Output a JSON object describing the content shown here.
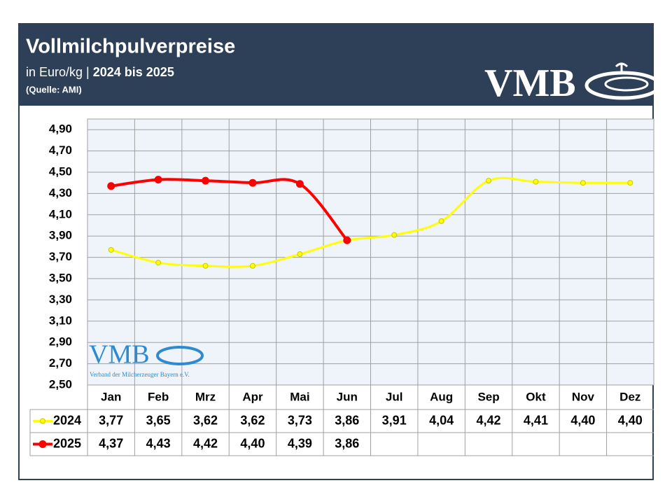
{
  "chart_data": {
    "type": "line",
    "title": "Vollmilchpulverpreise",
    "unit": "in Euro/kg |",
    "subtitle": "2024 bis 2025",
    "source": "(Quelle: AMI)",
    "logo": "VMB",
    "watermark": "VMB",
    "watermark_caption": "Verband der Milcherzeuger Bayern e.V.",
    "categories": [
      "Jan",
      "Feb",
      "Mrz",
      "Apr",
      "Mai",
      "Jun",
      "Jul",
      "Aug",
      "Sep",
      "Okt",
      "Nov",
      "Dez"
    ],
    "series": [
      {
        "name": "2024",
        "color": "#ffff00",
        "values": [
          3.77,
          3.65,
          3.62,
          3.62,
          3.73,
          3.86,
          3.91,
          4.04,
          4.42,
          4.41,
          4.4,
          4.4
        ],
        "value_labels": [
          "3,77",
          "3,65",
          "3,62",
          "3,62",
          "3,73",
          "3,86",
          "3,91",
          "4,04",
          "4,42",
          "4,41",
          "4,40",
          "4,40"
        ]
      },
      {
        "name": "2025",
        "color": "#ff0000",
        "values": [
          4.37,
          4.43,
          4.42,
          4.4,
          4.39,
          3.86,
          null,
          null,
          null,
          null,
          null,
          null
        ],
        "value_labels": [
          "4,37",
          "4,43",
          "4,42",
          "4,40",
          "4,39",
          "3,86",
          null,
          null,
          null,
          null,
          null,
          null
        ]
      }
    ],
    "ylim": [
      2.5,
      5.0
    ],
    "yticks": [
      {
        "value": 2.5,
        "label": "2,50"
      },
      {
        "value": 2.7,
        "label": "2,70"
      },
      {
        "value": 2.9,
        "label": "2,90"
      },
      {
        "value": 3.1,
        "label": "3,10"
      },
      {
        "value": 3.3,
        "label": "3,30"
      },
      {
        "value": 3.5,
        "label": "3,50"
      },
      {
        "value": 3.7,
        "label": "3,70"
      },
      {
        "value": 3.9,
        "label": "3,90"
      },
      {
        "value": 4.1,
        "label": "4,10"
      },
      {
        "value": 4.3,
        "label": "4,30"
      },
      {
        "value": 4.5,
        "label": "4,50"
      },
      {
        "value": 4.7,
        "label": "4,70"
      },
      {
        "value": 4.9,
        "label": "4,90"
      }
    ],
    "grid": true
  }
}
